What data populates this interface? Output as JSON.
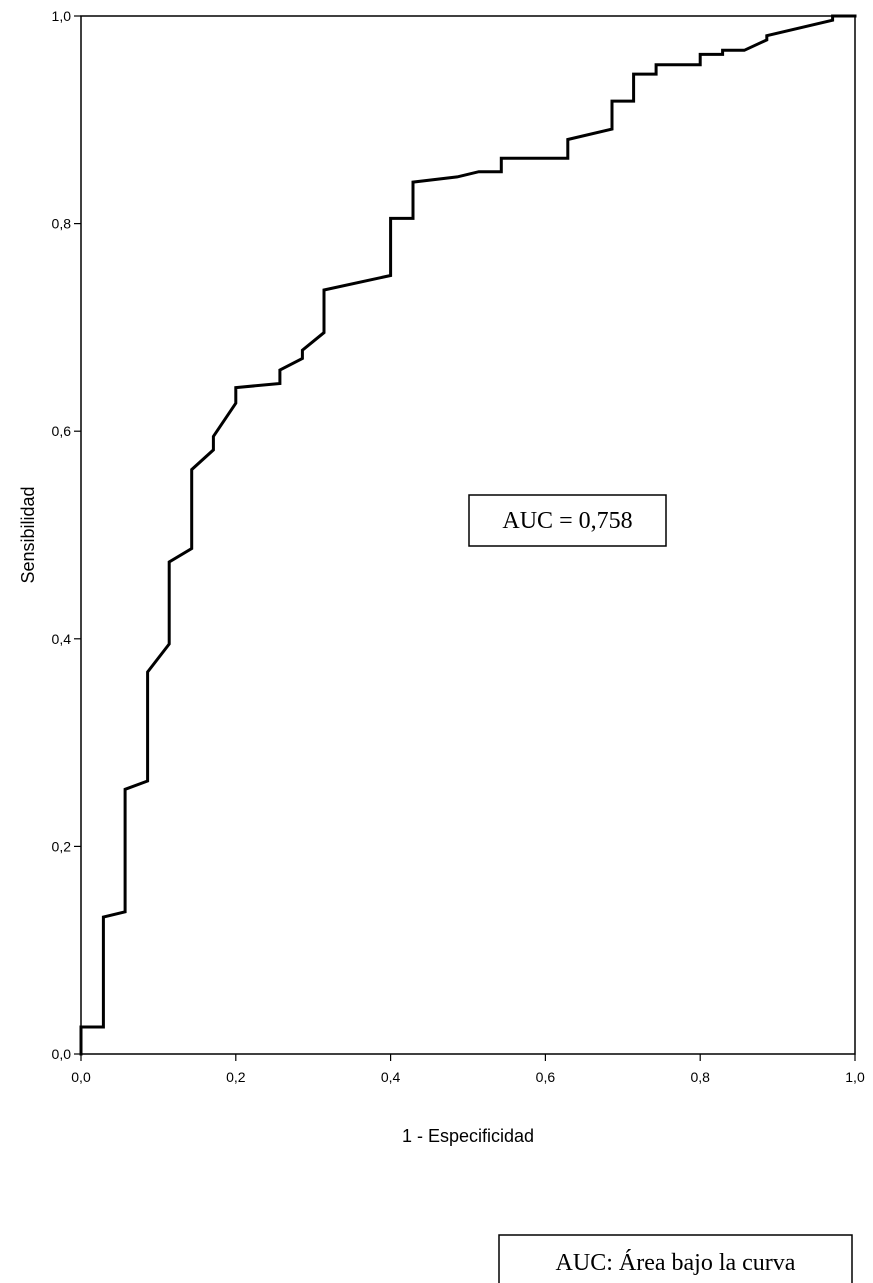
{
  "chart_data": {
    "type": "line",
    "xlabel": "1 - Especificidad",
    "ylabel": "Sensibilidad",
    "xlim": [
      0,
      1
    ],
    "ylim": [
      0,
      1
    ],
    "x_ticks": [
      "0,0",
      "0,2",
      "0,4",
      "0,6",
      "0,8",
      "1,0"
    ],
    "y_ticks": [
      "0,0",
      "0,2",
      "0,4",
      "0,6",
      "0,8",
      "1,0"
    ],
    "grid": false,
    "line_color": "#000000",
    "series": [
      {
        "x": [
          0.0,
          0.0,
          0.029,
          0.029,
          0.057,
          0.057,
          0.086,
          0.086,
          0.114,
          0.114,
          0.143,
          0.143,
          0.171,
          0.171,
          0.2,
          0.2,
          0.257,
          0.257,
          0.286,
          0.286,
          0.314,
          0.314,
          0.4,
          0.4,
          0.429,
          0.429,
          0.486,
          0.514,
          0.543,
          0.543,
          0.629,
          0.629,
          0.686,
          0.686,
          0.714,
          0.714,
          0.743,
          0.743,
          0.8,
          0.8,
          0.829,
          0.829,
          0.857,
          0.886,
          0.886,
          0.971,
          0.971,
          1.0
        ],
        "y": [
          0.0,
          0.026,
          0.026,
          0.132,
          0.137,
          0.255,
          0.263,
          0.368,
          0.395,
          0.474,
          0.487,
          0.563,
          0.582,
          0.595,
          0.627,
          0.642,
          0.646,
          0.659,
          0.67,
          0.678,
          0.695,
          0.736,
          0.75,
          0.805,
          0.805,
          0.84,
          0.845,
          0.85,
          0.85,
          0.863,
          0.863,
          0.881,
          0.891,
          0.918,
          0.918,
          0.944,
          0.944,
          0.953,
          0.953,
          0.963,
          0.963,
          0.967,
          0.967,
          0.977,
          0.981,
          0.996,
          1.0,
          1.0
        ]
      }
    ],
    "annotations": [
      "AUC = 0,758"
    ]
  },
  "footnote": "AUC: Área bajo la curva"
}
